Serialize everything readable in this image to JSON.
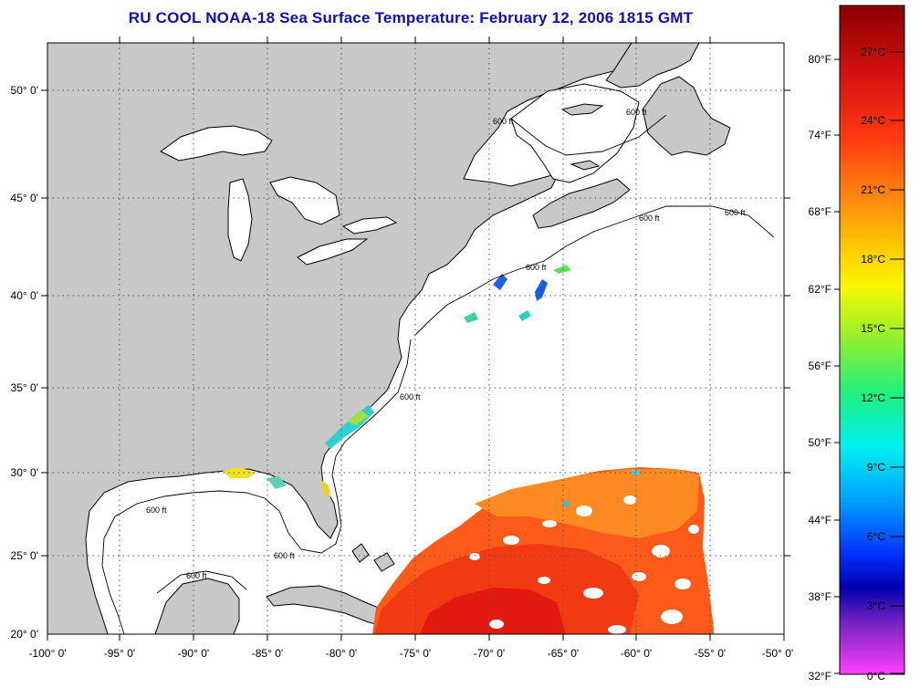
{
  "title": "RU COOL  NOAA-18  Sea Surface Temperature:  February 12, 2006 1815 GMT",
  "map": {
    "lon_ticks": [
      "-100° 0'",
      "-95° 0'",
      "-90° 0'",
      "-85° 0'",
      "-80° 0'",
      "-75° 0'",
      "-70° 0'",
      "-65° 0'",
      "-60° 0'",
      "-55° 0'",
      "-50° 0'"
    ],
    "lat_ticks": [
      "50° 0'",
      "45° 0'",
      "40° 0'",
      "35° 0'",
      "30° 0'",
      "25° 0'",
      "20° 0'"
    ],
    "isobath_label": "600 ft",
    "colors": {
      "land": "#c8c8c8",
      "ocean": "#ffffff",
      "grid": "#555555"
    }
  },
  "colorbar": {
    "fahrenheit": [
      "80°F",
      "74°F",
      "68°F",
      "62°F",
      "56°F",
      "50°F",
      "44°F",
      "38°F",
      "32°F"
    ],
    "celsius": [
      "27°C",
      "24°C",
      "21°C",
      "18°C",
      "15°C",
      "12°C",
      "9°C",
      "6°C",
      "3°C",
      "0°C"
    ],
    "scale_colors": [
      "#9a0000",
      "#e01010",
      "#ff4010",
      "#ff8010",
      "#ffb010",
      "#ffe000",
      "#c8f020",
      "#60f060",
      "#20f0c0",
      "#00f0ff",
      "#0090ff",
      "#0020ff",
      "#0000c0",
      "#8020c0",
      "#e020d0",
      "#ff60ff"
    ]
  }
}
